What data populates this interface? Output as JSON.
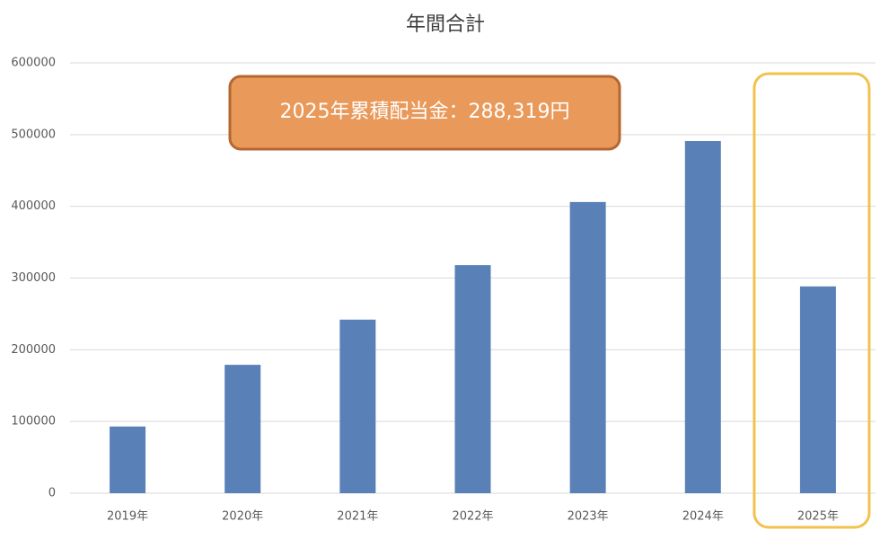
{
  "chart_data": {
    "type": "bar",
    "title": "年間合計",
    "categories": [
      "2019年",
      "2020年",
      "2021年",
      "2022年",
      "2023年",
      "2024年",
      "2025年"
    ],
    "values": [
      93000,
      179000,
      242000,
      318000,
      406000,
      491000,
      288319
    ],
    "color": "#5a80b8",
    "ylim": [
      0,
      600000
    ],
    "yticks": [
      0,
      100000,
      200000,
      300000,
      400000,
      500000,
      600000
    ],
    "grid": true,
    "annotation": "2025年累積配当金：288,319円"
  }
}
